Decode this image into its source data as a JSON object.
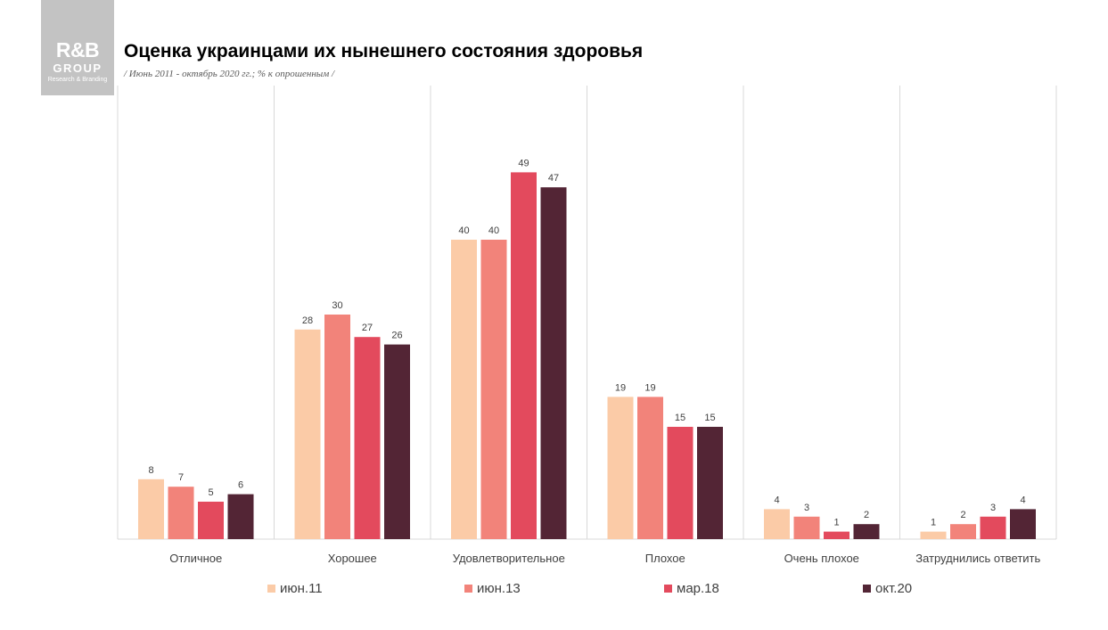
{
  "logo": {
    "brand": "R&B",
    "group": "GROUP",
    "tagline": "Research & Branding"
  },
  "header": {
    "title": "Оценка украинцами их нынешнего состояния здоровья",
    "subtitle": "/ Июнь 2011 - октябрь 2020 гг.; % к опрошенным /"
  },
  "chart_data": {
    "type": "bar",
    "title": "Оценка украинцами их нынешнего состояния здоровья",
    "categories": [
      "Отличное",
      "Хорошее",
      "Удовлетворительное",
      "Плохое",
      "Очень плохое",
      "Затруднились ответить"
    ],
    "series": [
      {
        "name": "июн.11",
        "color": "#fbcba7",
        "values": [
          8,
          28,
          40,
          19,
          4,
          1
        ]
      },
      {
        "name": "июн.13",
        "color": "#f2837a",
        "values": [
          7,
          30,
          40,
          19,
          3,
          2
        ]
      },
      {
        "name": "мар.18",
        "color": "#e34a5d",
        "values": [
          5,
          27,
          49,
          15,
          1,
          3
        ]
      },
      {
        "name": "окт.20",
        "color": "#532535",
        "values": [
          6,
          26,
          47,
          15,
          2,
          4
        ]
      }
    ],
    "ylim": [
      0,
      60
    ],
    "grid": false,
    "legend_position": "bottom",
    "data_labels": true
  }
}
